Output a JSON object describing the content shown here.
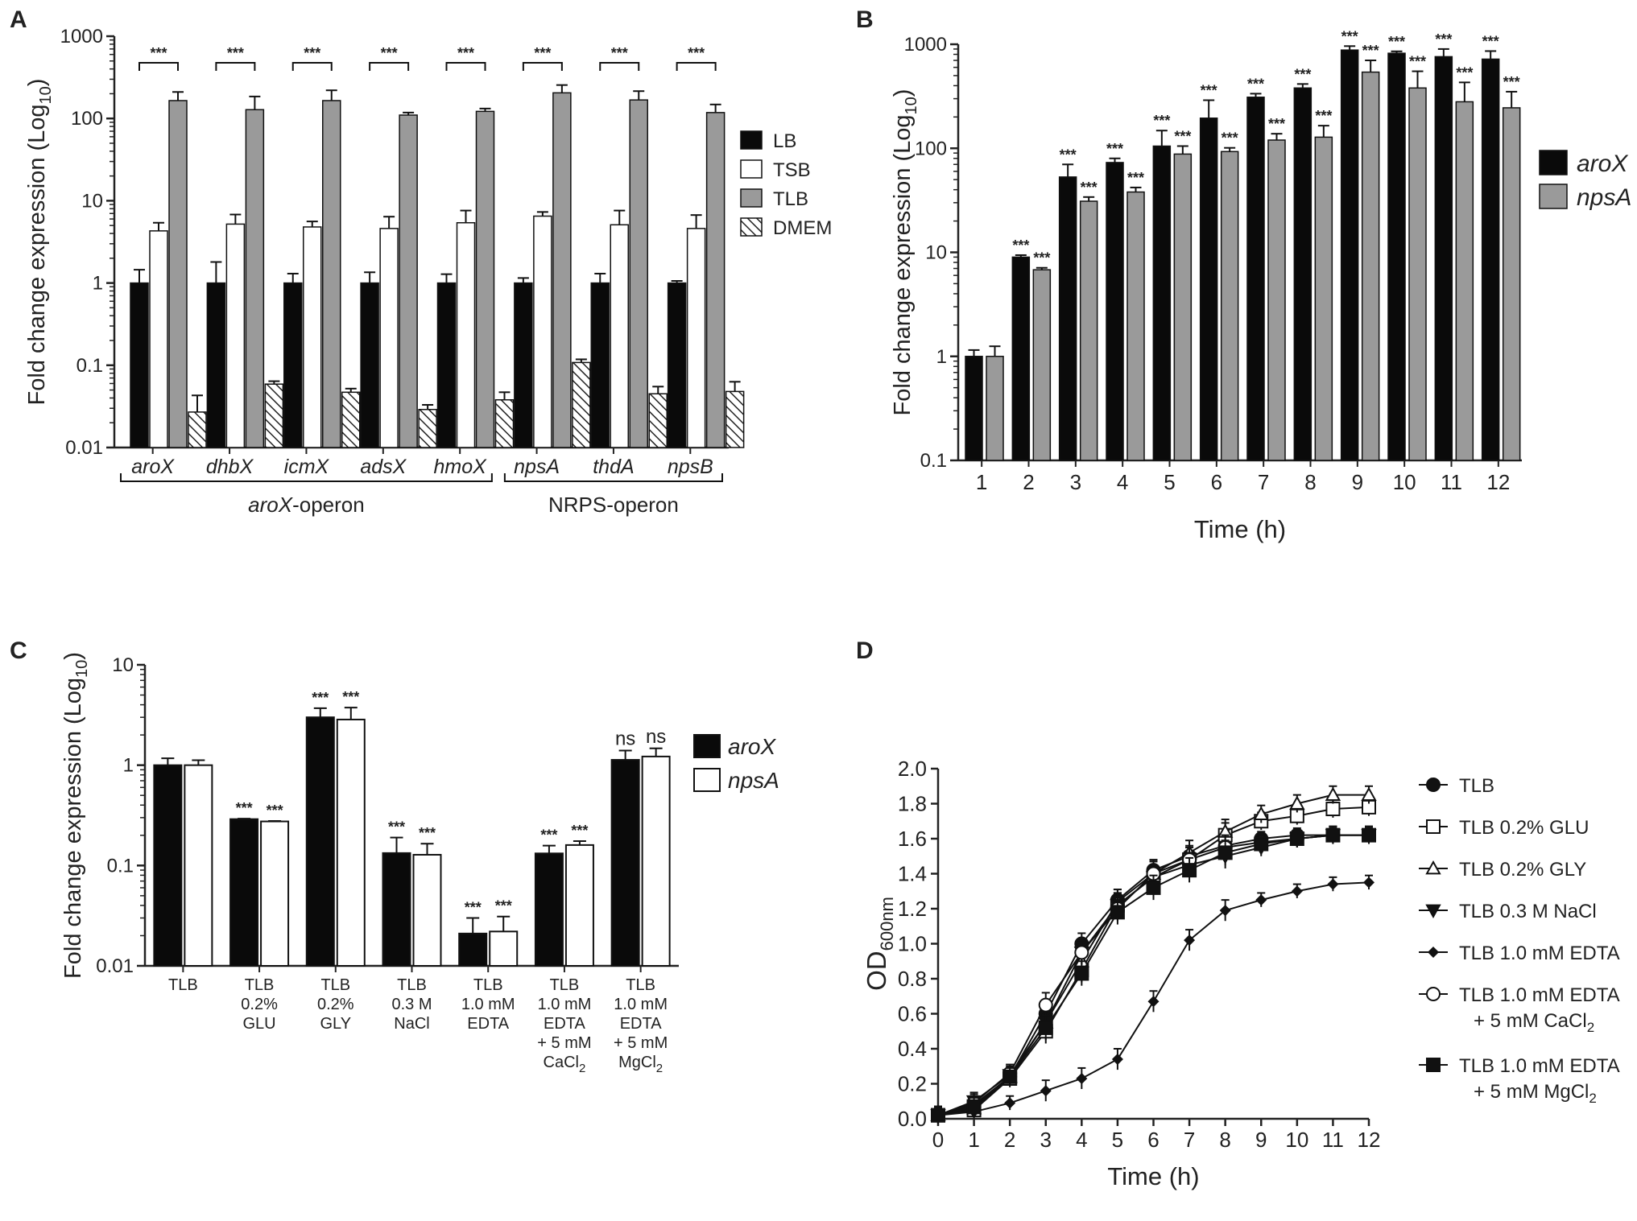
{
  "colors": {
    "black": "#0a0a0a",
    "white": "#ffffff",
    "gray": "#9a9a9a",
    "hatch": "#333333",
    "axis": "#222222"
  },
  "chart_data": [
    {
      "panel": "A",
      "type": "bar",
      "scale": "log",
      "ylabel_main": "Fold change expression (Log",
      "ylabel_sub": "10",
      "ylabel_end": ")",
      "ylim": [
        0.01,
        1000
      ],
      "yticks": [
        "0.01",
        "0.1",
        "1",
        "10",
        "100",
        "1000"
      ],
      "categories": [
        "aroX",
        "dhbX",
        "icmX",
        "adsX",
        "hmoX",
        "npsA",
        "thdA",
        "npsB"
      ],
      "groups": [
        {
          "label": "aroX-operon",
          "italic_part": "aroX",
          "plain_part": "-operon",
          "from": 0,
          "to": 4
        },
        {
          "label": "NRPS-operon",
          "italic_part": "",
          "plain_part": "NRPS-operon",
          "from": 5,
          "to": 7
        }
      ],
      "significance": "***",
      "series": [
        {
          "name": "LB",
          "fill": "black",
          "values": [
            1,
            1,
            1,
            1,
            1,
            1,
            1,
            1
          ],
          "errors": [
            1.45,
            1.8,
            1.3,
            1.35,
            1.28,
            1.15,
            1.3,
            1.06
          ]
        },
        {
          "name": "TSB",
          "fill": "white",
          "values": [
            4.3,
            5.2,
            4.8,
            4.6,
            5.4,
            6.5,
            5.1,
            4.6
          ],
          "errors": [
            5.4,
            6.8,
            5.6,
            6.4,
            7.6,
            7.3,
            7.6,
            6.7
          ]
        },
        {
          "name": "TLB",
          "fill": "gray",
          "values": [
            165,
            128,
            165,
            110,
            122,
            205,
            168,
            118
          ],
          "errors": [
            210,
            185,
            220,
            118,
            132,
            255,
            215,
            148
          ]
        },
        {
          "name": "DMEM",
          "fill": "hatch",
          "values": [
            0.027,
            0.059,
            0.047,
            0.029,
            0.038,
            0.108,
            0.045,
            0.048
          ],
          "errors": [
            0.043,
            0.064,
            0.052,
            0.033,
            0.047,
            0.118,
            0.055,
            0.063
          ]
        }
      ]
    },
    {
      "panel": "B",
      "type": "bar",
      "scale": "log",
      "ylabel_main": "Fold change expression (Log",
      "ylabel_sub": "10",
      "ylabel_end": ")",
      "xlabel": "Time (h)",
      "ylim": [
        0.1,
        1000
      ],
      "yticks": [
        "0.1",
        "1",
        "10",
        "100",
        "1000"
      ],
      "categories": [
        "1",
        "2",
        "3",
        "4",
        "5",
        "6",
        "7",
        "8",
        "9",
        "10",
        "11",
        "12"
      ],
      "significance": "***",
      "series": [
        {
          "name": "aroX",
          "fill": "black",
          "values": [
            1,
            9,
            53,
            73,
            105,
            195,
            310,
            380,
            880,
            820,
            760,
            720
          ],
          "errors": [
            1.15,
            9.4,
            70,
            80,
            148,
            290,
            335,
            415,
            960,
            855,
            900,
            860
          ],
          "stars": [
            false,
            true,
            true,
            true,
            true,
            true,
            true,
            true,
            true,
            true,
            true,
            true
          ]
        },
        {
          "name": "npsA",
          "fill": "gray",
          "values": [
            1,
            6.8,
            31,
            38,
            88,
            93,
            120,
            128,
            540,
            380,
            280,
            245
          ],
          "errors": [
            1.25,
            7.1,
            34,
            42,
            105,
            101,
            138,
            165,
            700,
            550,
            430,
            350
          ],
          "stars": [
            false,
            true,
            true,
            true,
            true,
            true,
            true,
            true,
            true,
            true,
            true,
            true
          ]
        }
      ]
    },
    {
      "panel": "C",
      "type": "bar",
      "scale": "log",
      "ylabel_main": "Fold change expression (Log",
      "ylabel_sub": "10",
      "ylabel_end": ")",
      "ylim": [
        0.01,
        10
      ],
      "yticks": [
        "0.01",
        "0.1",
        "1",
        "10"
      ],
      "categories": [
        {
          "lines": [
            "TLB"
          ]
        },
        {
          "lines": [
            "TLB",
            "0.2%",
            "GLU"
          ]
        },
        {
          "lines": [
            "TLB",
            "0.2%",
            "GLY"
          ]
        },
        {
          "lines": [
            "TLB",
            "0.3 M",
            "NaCl"
          ]
        },
        {
          "lines": [
            "TLB",
            "1.0 mM",
            "EDTA"
          ]
        },
        {
          "lines": [
            "TLB",
            "1.0 mM",
            "EDTA",
            "+ 5 mM",
            "CaCl"
          ],
          "last_sub": "2"
        },
        {
          "lines": [
            "TLB",
            "1.0 mM",
            "EDTA",
            "+ 5 mM",
            "MgCl"
          ],
          "last_sub": "2"
        }
      ],
      "series": [
        {
          "name": "aroX",
          "fill": "black",
          "values": [
            1.0,
            0.29,
            3.0,
            0.133,
            0.021,
            0.132,
            1.13
          ],
          "errors": [
            1.17,
            0.293,
            3.7,
            0.19,
            0.03,
            0.158,
            1.4
          ],
          "labels": [
            "",
            "***",
            "***",
            "***",
            "***",
            "***",
            "ns"
          ]
        },
        {
          "name": "npsA",
          "fill": "white",
          "values": [
            1.0,
            0.275,
            2.85,
            0.128,
            0.022,
            0.16,
            1.22
          ],
          "errors": [
            1.12,
            0.278,
            3.75,
            0.165,
            0.031,
            0.175,
            1.47
          ],
          "labels": [
            "",
            "***",
            "***",
            "***",
            "***",
            "***",
            "ns"
          ]
        }
      ]
    },
    {
      "panel": "D",
      "type": "line",
      "ylabel_main": "OD",
      "ylabel_sub": "600nm",
      "xlabel": "Time (h)",
      "x": [
        0,
        1,
        2,
        3,
        4,
        5,
        6,
        7,
        8,
        9,
        10,
        11,
        12
      ],
      "ylim": [
        0,
        2.0
      ],
      "yticks": [
        "0.0",
        "0.2",
        "0.4",
        "0.6",
        "0.8",
        "1.0",
        "1.2",
        "1.4",
        "1.6",
        "1.8",
        "2.0"
      ],
      "xticks": [
        "0",
        "1",
        "2",
        "3",
        "4",
        "5",
        "6",
        "7",
        "8",
        "9",
        "10",
        "11",
        "12"
      ],
      "series": [
        {
          "name": "TLB",
          "marker": "circle-filled",
          "lines": [
            "TLB"
          ],
          "values": [
            0.02,
            0.08,
            0.24,
            0.6,
            1.0,
            1.25,
            1.42,
            1.5,
            1.56,
            1.6,
            1.62,
            1.62,
            1.62
          ],
          "err": 0.04
        },
        {
          "name": "TLB 0.2% GLU",
          "marker": "square-open",
          "lines": [
            "TLB 0.2% GLU"
          ],
          "values": [
            0.02,
            0.05,
            0.23,
            0.5,
            0.85,
            1.22,
            1.38,
            1.48,
            1.62,
            1.7,
            1.73,
            1.77,
            1.78
          ],
          "err": 0.05
        },
        {
          "name": "TLB 0.2% GLY",
          "marker": "triangle-open",
          "lines": [
            "TLB 0.2% GLY"
          ],
          "values": [
            0.02,
            0.06,
            0.24,
            0.55,
            0.9,
            1.24,
            1.4,
            1.52,
            1.64,
            1.74,
            1.8,
            1.85,
            1.85
          ],
          "err": 0.05
        },
        {
          "name": "TLB 0.3 M NaCl",
          "marker": "triangle-down-filled",
          "lines": [
            "TLB 0.3 M NaCl"
          ],
          "values": [
            0.02,
            0.1,
            0.25,
            0.55,
            0.95,
            1.22,
            1.38,
            1.45,
            1.5,
            1.55,
            1.6,
            1.62,
            1.62
          ],
          "err": 0.05
        },
        {
          "name": "TLB 1.0 mM EDTA",
          "marker": "diamond-filled",
          "lines": [
            "TLB 1.0 mM EDTA"
          ],
          "values": [
            0.02,
            0.04,
            0.09,
            0.16,
            0.23,
            0.34,
            0.67,
            1.02,
            1.19,
            1.25,
            1.3,
            1.34,
            1.35
          ],
          "err": 0.04
        },
        {
          "name": "TLB 1.0 mM EDTA + 5 mM CaCl2",
          "marker": "circle-open",
          "lines": [
            "TLB 1.0 mM EDTA",
            "+ 5 mM CaCl"
          ],
          "sub": "2",
          "values": [
            0.02,
            0.09,
            0.26,
            0.65,
            0.95,
            1.2,
            1.4,
            1.48,
            1.55,
            1.58,
            1.6,
            1.62,
            1.62
          ],
          "err": 0.05
        },
        {
          "name": "TLB 1.0 mM EDTA + 5 mM MgCl2",
          "marker": "square-filled",
          "lines": [
            "TLB 1.0 mM EDTA",
            "+ 5 mM MgCl"
          ],
          "sub": "2",
          "values": [
            0.02,
            0.07,
            0.24,
            0.52,
            0.83,
            1.18,
            1.32,
            1.42,
            1.52,
            1.57,
            1.6,
            1.62,
            1.62
          ],
          "err": 0.05
        }
      ]
    }
  ]
}
